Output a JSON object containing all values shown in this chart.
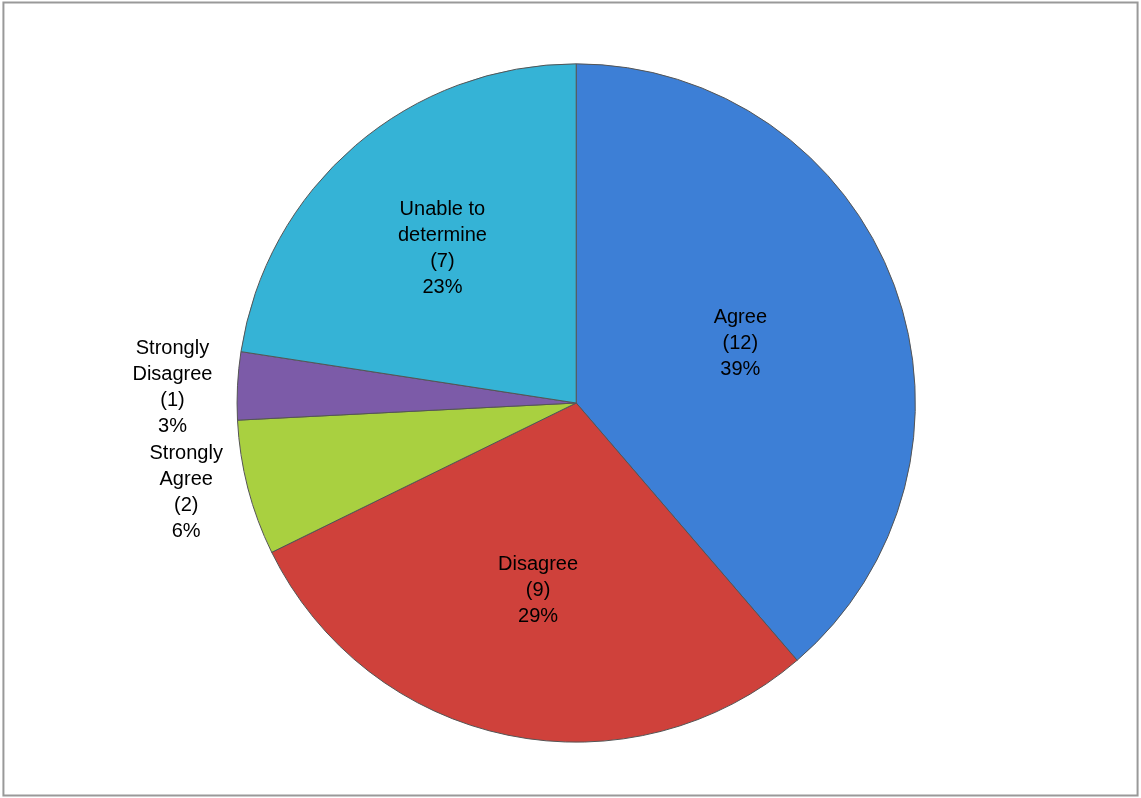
{
  "chart_data": {
    "type": "pie",
    "categories": [
      "Agree",
      "Disagree",
      "Strongly Agree",
      "Strongly Disagree",
      "Unable to determine"
    ],
    "values": [
      12,
      9,
      2,
      1,
      7
    ],
    "value_labels": [
      "(12)\n39%",
      "(9)\n29%",
      "(2)\n6%",
      "(1)\n3%",
      "(7)\n23%"
    ],
    "colors": [
      "#3d7fd6",
      "#cf413b",
      "#a9d040",
      "#7c5ba8",
      "#35b3d6"
    ]
  }
}
